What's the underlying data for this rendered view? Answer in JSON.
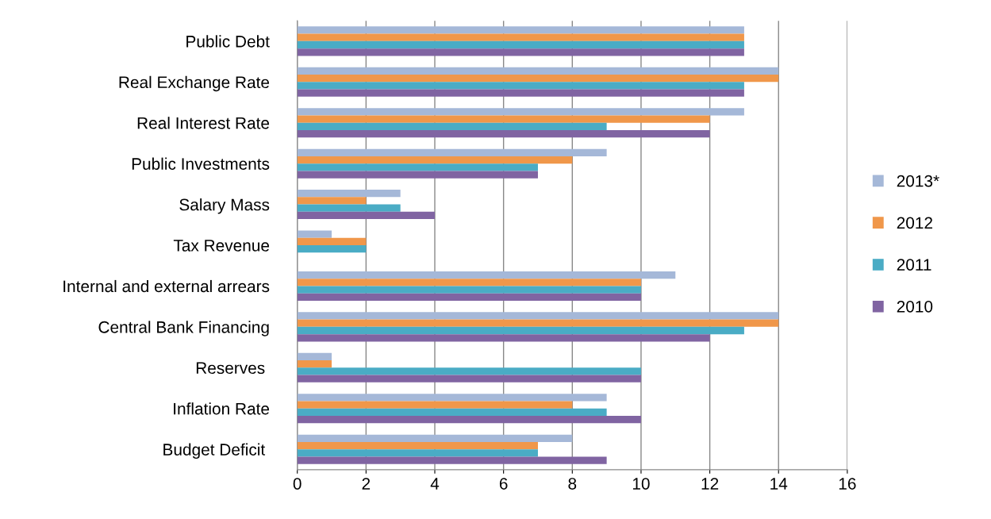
{
  "chart_data": {
    "type": "bar",
    "orientation": "horizontal",
    "categories": [
      "Public Debt",
      "Real Exchange Rate",
      "Real Interest Rate",
      "Public Investments",
      "Salary Mass",
      "Tax Revenue",
      "Internal and external arrears",
      "Central Bank Financing",
      "Reserves ",
      "Inflation Rate",
      "Budget Deficit "
    ],
    "series": [
      {
        "name": "2013*",
        "color": "#a5b8d8",
        "values": [
          13,
          14,
          13,
          9,
          3,
          1,
          11,
          14,
          1,
          9,
          8
        ]
      },
      {
        "name": "2012",
        "color": "#f0974a",
        "values": [
          13,
          14,
          12,
          8,
          2,
          2,
          10,
          14,
          1,
          8,
          7
        ]
      },
      {
        "name": "2011",
        "color": "#4aacc5",
        "values": [
          13,
          13,
          9,
          7,
          3,
          2,
          10,
          13,
          10,
          9,
          7
        ]
      },
      {
        "name": "2010",
        "color": "#8064a2",
        "values": [
          13,
          13,
          12,
          7,
          4,
          null,
          10,
          12,
          10,
          10,
          9
        ]
      }
    ],
    "xlim": [
      0,
      16
    ],
    "xticks": [
      0,
      2,
      4,
      6,
      8,
      10,
      12,
      14,
      16
    ],
    "grid": "x",
    "legend": "right"
  }
}
